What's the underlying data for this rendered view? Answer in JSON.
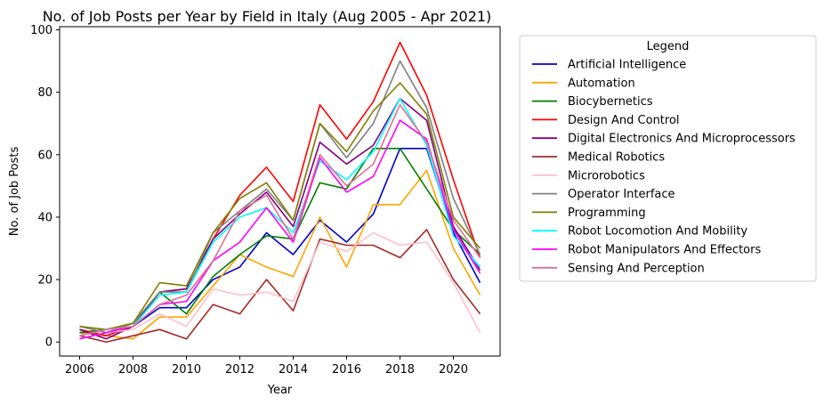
{
  "chart_data": {
    "type": "line",
    "title": "No. of Job Posts per Year by Field in Italy (Aug 2005 - Apr 2021)",
    "xlabel": "Year",
    "ylabel": "No. of Job Posts",
    "x": [
      2006,
      2007,
      2008,
      2009,
      2010,
      2011,
      2012,
      2013,
      2014,
      2015,
      2016,
      2017,
      2018,
      2019,
      2020,
      2021
    ],
    "xticks": [
      "2006",
      "2008",
      "2010",
      "2012",
      "2014",
      "2016",
      "2018",
      "2020"
    ],
    "yticks": [
      "0",
      "20",
      "40",
      "60",
      "80",
      "100"
    ],
    "xlim": [
      2005.25,
      2021.75
    ],
    "ylim": [
      -4.5,
      101
    ],
    "grid": false,
    "legend": {
      "title": "Legend",
      "placement": "outside-right"
    },
    "series": [
      {
        "name": "Artificial Intelligence",
        "color": "#0000CD",
        "values": [
          3,
          2,
          5,
          11,
          11,
          20,
          24,
          35,
          28,
          39,
          32,
          41,
          62,
          62,
          35,
          19
        ]
      },
      {
        "name": "Automation",
        "color": "#FFA500",
        "values": [
          3,
          2,
          1,
          8,
          8,
          18,
          28,
          24,
          21,
          40,
          24,
          44,
          44,
          55,
          30,
          15
        ]
      },
      {
        "name": "Biocybernetics",
        "color": "#008000",
        "values": [
          3,
          4,
          6,
          16,
          9,
          21,
          28,
          34,
          33,
          51,
          49,
          62,
          62,
          49,
          36,
          28
        ]
      },
      {
        "name": "Design And Control",
        "color": "#FF0000",
        "values": [
          4,
          2,
          5,
          16,
          17,
          33,
          47,
          56,
          45,
          76,
          65,
          77,
          96,
          79,
          52,
          27
        ]
      },
      {
        "name": "Digital Electronics And Microprocessors",
        "color": "#800080",
        "values": [
          4,
          1,
          5,
          16,
          17,
          33,
          41,
          48,
          37,
          64,
          57,
          63,
          78,
          71,
          37,
          23
        ]
      },
      {
        "name": "Medical Robotics",
        "color": "#A52A2A",
        "values": [
          2,
          0,
          2,
          4,
          1,
          12,
          9,
          20,
          10,
          33,
          31,
          31,
          27,
          36,
          20,
          9
        ]
      },
      {
        "name": "Microrobotics",
        "color": "#FFC0CB",
        "values": [
          1,
          3,
          4,
          9,
          5,
          17,
          15,
          16,
          13,
          32,
          29,
          35,
          31,
          32,
          19,
          3
        ]
      },
      {
        "name": "Operator Interface",
        "color": "#808080",
        "values": [
          5,
          3,
          6,
          16,
          16,
          35,
          42,
          49,
          39,
          70,
          59,
          70,
          90,
          75,
          46,
          28
        ]
      },
      {
        "name": "Programming",
        "color": "#808000",
        "values": [
          5,
          4,
          6,
          19,
          18,
          35,
          46,
          51,
          39,
          70,
          61,
          74,
          83,
          73,
          40,
          30
        ]
      },
      {
        "name": "Robot Locomotion And Mobility",
        "color": "#00FFFF",
        "values": [
          2,
          4,
          5,
          15,
          16,
          32,
          40,
          43,
          35,
          58,
          52,
          61,
          78,
          63,
          34,
          24
        ]
      },
      {
        "name": "Robot Manipulators And Effectors",
        "color": "#FF00FF",
        "values": [
          1,
          3,
          5,
          12,
          13,
          26,
          32,
          43,
          32,
          59,
          48,
          53,
          71,
          65,
          36,
          22
        ]
      },
      {
        "name": "Sensing And Perception",
        "color": "#DB7093",
        "values": [
          2,
          4,
          5,
          12,
          15,
          26,
          42,
          47,
          33,
          60,
          50,
          57,
          76,
          64,
          39,
          27
        ]
      }
    ]
  }
}
